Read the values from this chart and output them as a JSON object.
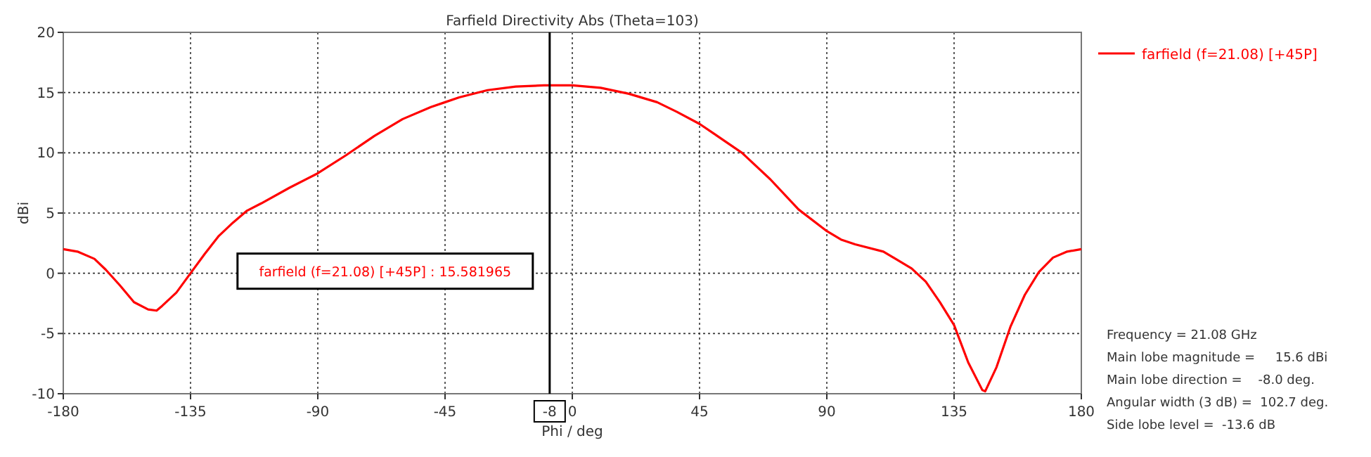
{
  "chart_data": {
    "type": "line",
    "title": "Farfield Directivity Abs (Theta=103)",
    "xlabel": "Phi / deg",
    "ylabel": "dBi",
    "x": [
      -180,
      -175,
      -169,
      -165,
      -160,
      -155,
      -150,
      -147,
      -145,
      -140,
      -135,
      -130,
      -125,
      -120,
      -115,
      -110,
      -100,
      -90,
      -80,
      -70,
      -60,
      -50,
      -45,
      -40,
      -30,
      -20,
      -10,
      -8,
      0,
      10,
      20,
      30,
      37,
      45,
      50,
      60,
      70,
      80,
      90,
      95,
      100,
      110,
      120,
      125,
      130,
      135,
      140,
      145,
      146,
      150,
      155,
      160,
      165,
      170,
      175,
      180
    ],
    "series": [
      {
        "name": "farfield (f=21.08) [+45P]",
        "color": "#ff0000",
        "values": [
          2.0,
          1.8,
          1.2,
          0.3,
          -1.0,
          -2.4,
          -3.0,
          -3.1,
          -2.7,
          -1.6,
          0,
          1.6,
          3.1,
          4.2,
          5.2,
          5.8,
          7.1,
          8.3,
          9.8,
          11.4,
          12.8,
          13.8,
          14.2,
          14.6,
          15.2,
          15.5,
          15.6,
          15.6,
          15.6,
          15.4,
          14.9,
          14.2,
          13.4,
          12.4,
          11.6,
          10.0,
          7.8,
          5.3,
          3.5,
          2.8,
          2.4,
          1.8,
          0.4,
          -0.7,
          -2.4,
          -4.3,
          -7.4,
          -9.7,
          -9.8,
          -7.8,
          -4.4,
          -1.8,
          0.1,
          1.3,
          1.8,
          2.0
        ]
      }
    ],
    "xlim": [
      -180,
      180
    ],
    "xticks": [
      -180,
      -135,
      -90,
      -45,
      0,
      45,
      90,
      135,
      180
    ],
    "ylim": [
      -10,
      20
    ],
    "yticks": [
      -10,
      -5,
      0,
      5,
      10,
      15,
      20
    ],
    "grid": true,
    "legend": "top right",
    "marker": "none",
    "line_style": "solid",
    "ref_lines": [
      {
        "axis": "x",
        "value": -8,
        "label": "-8",
        "color": "#000000"
      }
    ],
    "annotations": [
      "farfield (f=21.08) [+45P] : 15.581965",
      "Frequency = 21.08 GHz",
      "Main lobe magnitude =     15.6 dBi",
      "Main lobe direction =    -8.0 deg.",
      "Angular width (3 dB) =  102.7 deg.",
      "Side lobe level =  -13.6 dB"
    ]
  }
}
